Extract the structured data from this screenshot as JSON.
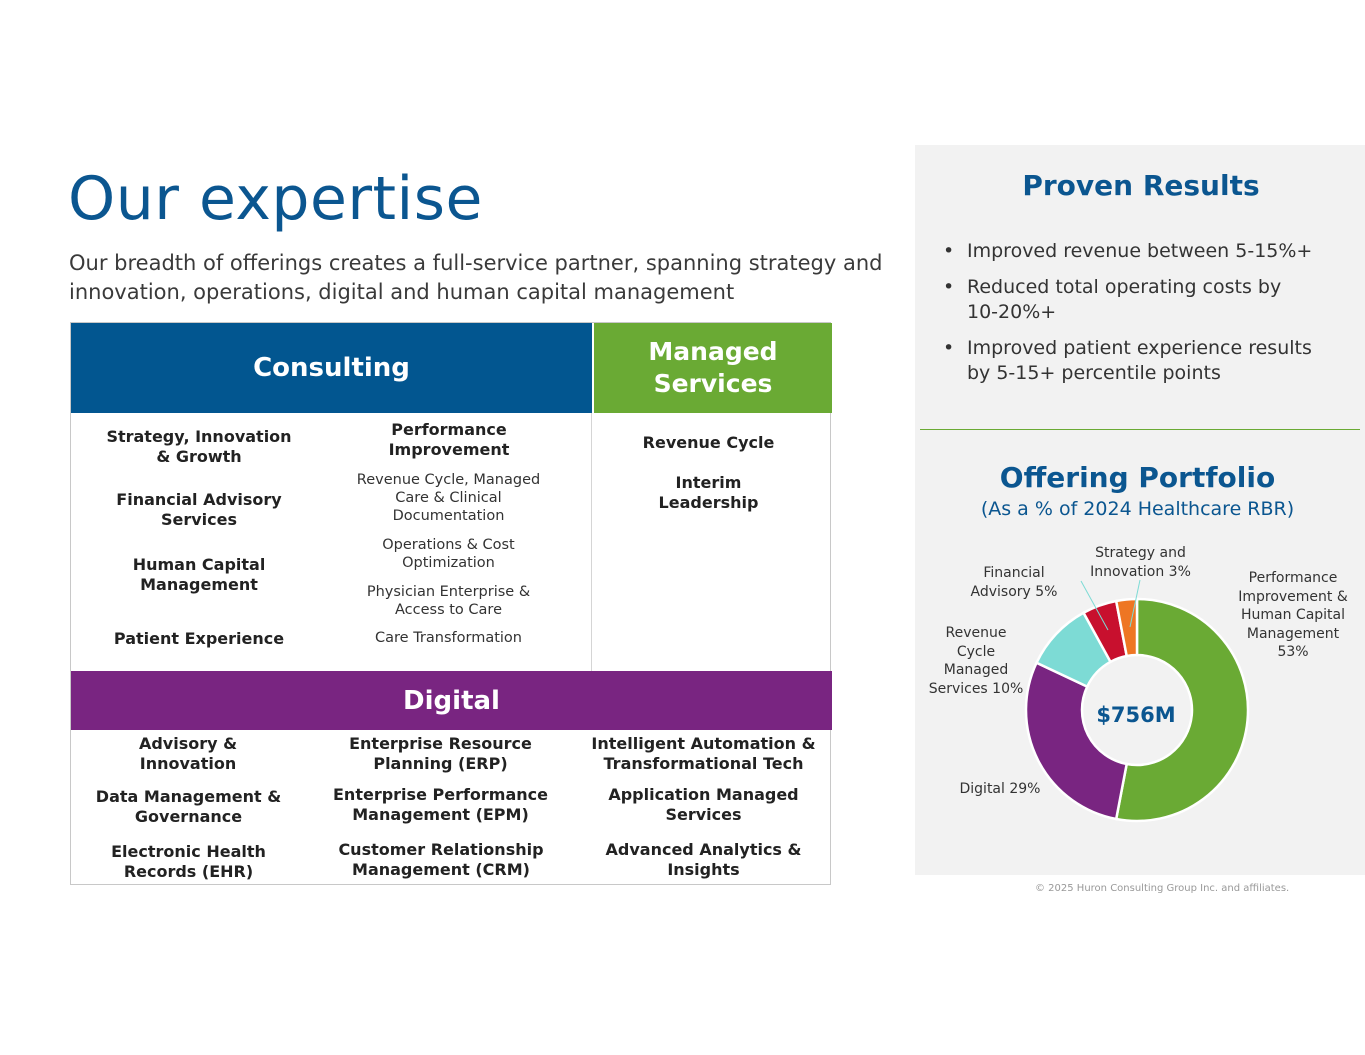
{
  "title": "Our expertise",
  "subtitle": "Our breadth of offerings creates a full-service partner, spanning strategy and innovation, operations, digital and human capital management",
  "grid": {
    "consulting_header": "Consulting",
    "managed_header": "Managed Services",
    "digital_header": "Digital",
    "consulting_left": [
      "Strategy, Innovation & Growth",
      "Financial Advisory Services",
      "Human Capital Management",
      "Patient Experience"
    ],
    "performance_title": "Performance Improvement",
    "performance_items": [
      "Revenue Cycle, Managed Care & Clinical Documentation",
      "Operations & Cost Optimization",
      "Physician Enterprise & Access to Care",
      "Care Transformation"
    ],
    "managed_items": [
      "Revenue Cycle",
      "Interim Leadership"
    ],
    "digital_col1": [
      "Advisory & Innovation",
      "Data Management & Governance",
      "Electronic Health Records (EHR)"
    ],
    "digital_col2": [
      "Enterprise Resource Planning (ERP)",
      "Enterprise Performance Management (EPM)",
      "Customer Relationship Management (CRM)"
    ],
    "digital_col3": [
      "Intelligent Automation & Transformational Tech",
      "Application Managed Services",
      "Advanced Analytics & Insights"
    ]
  },
  "panel": {
    "results_title": "Proven Results",
    "bullets": [
      "Improved revenue between 5-15%+",
      "Reduced total operating costs by 10-20%+",
      "Improved patient experience results by 5-15+ percentile points"
    ],
    "portfolio_title": "Offering Portfolio",
    "portfolio_subtitle": "(As a % of 2024 Healthcare RBR)"
  },
  "chart_data": {
    "type": "pie",
    "center_label": "$756M",
    "slices": [
      {
        "label": "Performance Improvement & Human Capital Management 53%",
        "value": 53,
        "color": "#6aaa34"
      },
      {
        "label": "Digital 29%",
        "value": 29,
        "color": "#792581"
      },
      {
        "label": "Revenue Cycle Managed Services 10%",
        "value": 10,
        "color": "#7ddbd5"
      },
      {
        "label": "Financial Advisory 5%",
        "value": 5,
        "color": "#c8102e"
      },
      {
        "label": "Strategy and Innovation 3%",
        "value": 3,
        "color": "#ee7623"
      }
    ]
  },
  "footer": {
    "copyright": "© 2025 Huron Consulting Group Inc. and affiliates."
  }
}
